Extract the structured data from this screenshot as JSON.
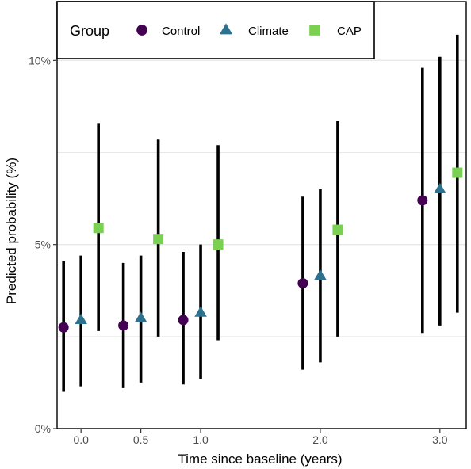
{
  "chart_data": {
    "type": "scatter",
    "subtype": "point-range (dodged by group)",
    "title": "",
    "xlabel": "Time since baseline (years)",
    "ylabel": "Predicted probability (%)",
    "x_ticks": [
      0.0,
      0.5,
      1.0,
      2.0,
      3.0
    ],
    "x_tick_labels": [
      "0.0",
      "0.5",
      "1.0",
      "2.0",
      "3.0"
    ],
    "xlim": [
      -0.2,
      3.22
    ],
    "y_ticks": [
      0,
      5,
      10
    ],
    "y_tick_labels": [
      "0%",
      "5%",
      "10%"
    ],
    "ylim": [
      0,
      11.6
    ],
    "grid": "horizontal major lines",
    "legend": {
      "title": "Group",
      "placement": "top-left, inside panel",
      "entries": [
        "Control",
        "Climate",
        "CAP"
      ]
    },
    "series": [
      {
        "name": "Control",
        "shape": "circle",
        "color": "#440154",
        "points": [
          {
            "x": 0.0,
            "y": 2.75,
            "ymin": 1.0,
            "ymax": 4.55
          },
          {
            "x": 0.5,
            "y": 2.8,
            "ymin": 1.1,
            "ymax": 4.5
          },
          {
            "x": 1.0,
            "y": 2.95,
            "ymin": 1.2,
            "ymax": 4.8
          },
          {
            "x": 2.0,
            "y": 3.95,
            "ymin": 1.6,
            "ymax": 6.3
          },
          {
            "x": 3.0,
            "y": 6.2,
            "ymin": 2.6,
            "ymax": 9.8
          }
        ]
      },
      {
        "name": "Climate",
        "shape": "triangle",
        "color": "#2c728e",
        "points": [
          {
            "x": 0.0,
            "y": 2.95,
            "ymin": 1.15,
            "ymax": 4.7
          },
          {
            "x": 0.5,
            "y": 3.0,
            "ymin": 1.25,
            "ymax": 4.7
          },
          {
            "x": 1.0,
            "y": 3.15,
            "ymin": 1.35,
            "ymax": 5.0
          },
          {
            "x": 2.0,
            "y": 4.15,
            "ymin": 1.8,
            "ymax": 6.5
          },
          {
            "x": 3.0,
            "y": 6.5,
            "ymin": 2.8,
            "ymax": 10.1
          }
        ]
      },
      {
        "name": "CAP",
        "shape": "square",
        "color": "#7ad151",
        "points": [
          {
            "x": 0.0,
            "y": 5.45,
            "ymin": 2.65,
            "ymax": 8.3
          },
          {
            "x": 0.5,
            "y": 5.15,
            "ymin": 2.5,
            "ymax": 7.85
          },
          {
            "x": 1.0,
            "y": 5.0,
            "ymin": 2.4,
            "ymax": 7.7
          },
          {
            "x": 2.0,
            "y": 5.4,
            "ymin": 2.5,
            "ymax": 8.35
          },
          {
            "x": 3.0,
            "y": 6.95,
            "ymin": 3.15,
            "ymax": 10.7
          }
        ]
      }
    ]
  },
  "colors": {
    "grid": "#e8e8e8",
    "axis": "#000000",
    "errorbar": "#000000"
  }
}
